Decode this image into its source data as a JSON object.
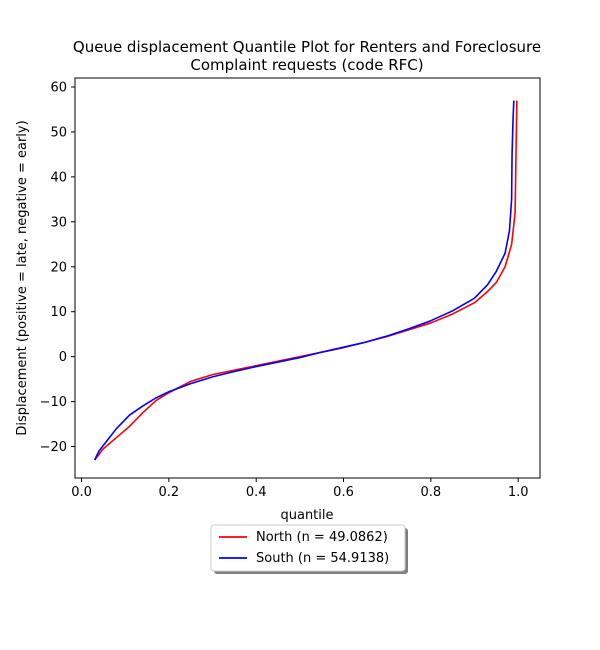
{
  "chart_data": {
    "type": "line",
    "title_lines": [
      "Queue displacement Quantile Plot for Renters and Foreclosure",
      "Complaint  requests (code RFC)"
    ],
    "xlabel": "quantile",
    "ylabel": "Displacement (positive = late, negative = early)",
    "xlim": [
      -0.015,
      1.05
    ],
    "ylim": [
      -27,
      62
    ],
    "x_ticks": [
      0.0,
      0.2,
      0.4,
      0.6,
      0.8,
      1.0
    ],
    "x_tick_labels": [
      "0.0",
      "0.2",
      "0.4",
      "0.6",
      "0.8",
      "1.0"
    ],
    "y_ticks": [
      -20,
      -10,
      0,
      10,
      20,
      30,
      40,
      50,
      60
    ],
    "y_tick_labels": [
      "−20",
      "−10",
      "0",
      "10",
      "20",
      "30",
      "40",
      "50",
      "60"
    ],
    "grid": false,
    "legend_placement": "below",
    "series": [
      {
        "name": "North (n = 49.0862)",
        "color": "#ff0000",
        "points": [
          [
            0.03,
            -23
          ],
          [
            0.05,
            -20.5
          ],
          [
            0.08,
            -18
          ],
          [
            0.11,
            -15.5
          ],
          [
            0.14,
            -12.5
          ],
          [
            0.17,
            -9.8
          ],
          [
            0.2,
            -8
          ],
          [
            0.25,
            -5.5
          ],
          [
            0.3,
            -4
          ],
          [
            0.35,
            -3
          ],
          [
            0.4,
            -2
          ],
          [
            0.45,
            -1
          ],
          [
            0.5,
            0
          ],
          [
            0.55,
            1
          ],
          [
            0.6,
            2
          ],
          [
            0.65,
            3.2
          ],
          [
            0.7,
            4.5
          ],
          [
            0.75,
            6
          ],
          [
            0.8,
            7.5
          ],
          [
            0.85,
            9.5
          ],
          [
            0.9,
            12
          ],
          [
            0.93,
            14.5
          ],
          [
            0.95,
            16.5
          ],
          [
            0.97,
            20
          ],
          [
            0.985,
            25
          ],
          [
            0.993,
            32
          ],
          [
            0.995,
            45
          ],
          [
            0.997,
            57
          ]
        ]
      },
      {
        "name": "South (n = 54.9138)",
        "color": "#0000ff",
        "points": [
          [
            0.03,
            -23
          ],
          [
            0.04,
            -21
          ],
          [
            0.06,
            -18.5
          ],
          [
            0.08,
            -16
          ],
          [
            0.11,
            -13
          ],
          [
            0.14,
            -11
          ],
          [
            0.17,
            -9.2
          ],
          [
            0.2,
            -7.8
          ],
          [
            0.25,
            -6
          ],
          [
            0.3,
            -4.5
          ],
          [
            0.35,
            -3.3
          ],
          [
            0.4,
            -2.2
          ],
          [
            0.45,
            -1.2
          ],
          [
            0.5,
            -0.2
          ],
          [
            0.55,
            1
          ],
          [
            0.6,
            2.1
          ],
          [
            0.65,
            3.2
          ],
          [
            0.7,
            4.6
          ],
          [
            0.75,
            6.2
          ],
          [
            0.8,
            8
          ],
          [
            0.85,
            10.2
          ],
          [
            0.9,
            13
          ],
          [
            0.93,
            16
          ],
          [
            0.95,
            19
          ],
          [
            0.97,
            23
          ],
          [
            0.98,
            28
          ],
          [
            0.985,
            35
          ],
          [
            0.986,
            45
          ],
          [
            0.988,
            52
          ],
          [
            0.99,
            57
          ]
        ]
      }
    ]
  }
}
